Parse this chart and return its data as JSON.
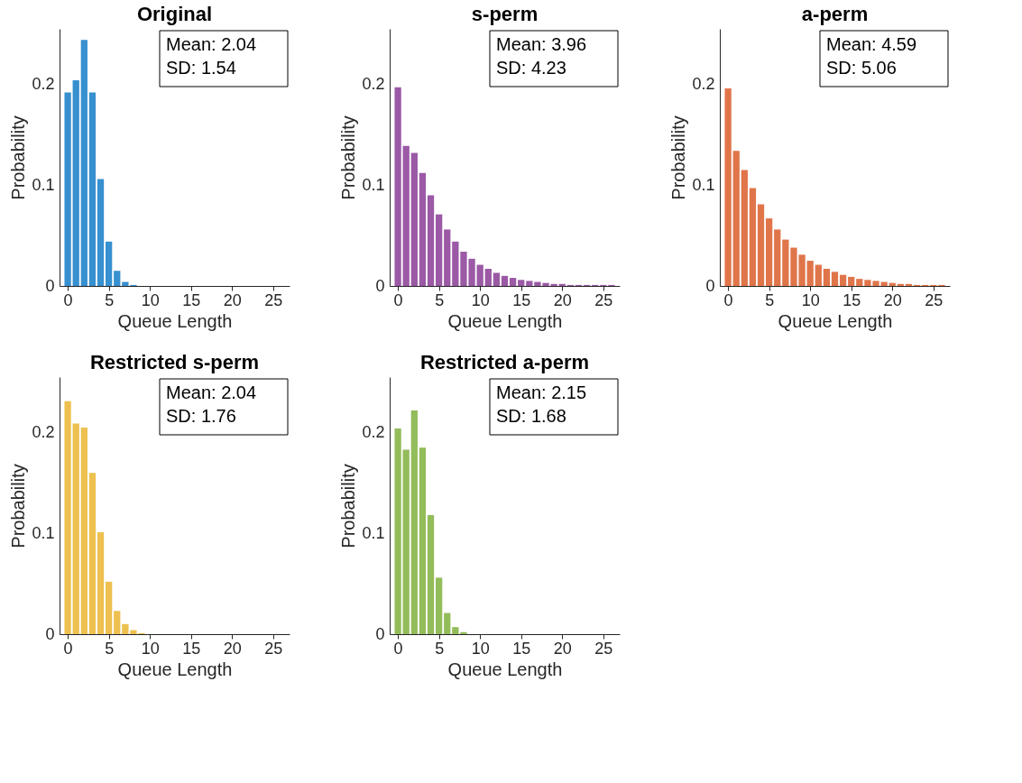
{
  "chart_data": [
    {
      "type": "bar",
      "title": "Original",
      "xlabel": "Queue Length",
      "ylabel": "Probability",
      "color": "#3790cf",
      "x": [
        0,
        1,
        2,
        3,
        4,
        5,
        6,
        7,
        8
      ],
      "values": [
        0.192,
        0.204,
        0.244,
        0.192,
        0.106,
        0.044,
        0.015,
        0.004,
        0.001
      ],
      "xlim": [
        -1,
        27
      ],
      "xticks": [
        0,
        5,
        10,
        15,
        20,
        25
      ],
      "ylim": [
        0,
        0.255
      ],
      "yticks": [
        0,
        0.1,
        0.2
      ],
      "annotations": [
        "Mean: 2.04",
        "SD: 1.54"
      ]
    },
    {
      "type": "bar",
      "title": "s-perm",
      "xlabel": "Queue Length",
      "ylabel": "Probability",
      "color": "#9b59a6",
      "x": [
        0,
        1,
        2,
        3,
        4,
        5,
        6,
        7,
        8,
        9,
        10,
        11,
        12,
        13,
        14,
        15,
        16,
        17,
        18,
        19,
        20,
        21,
        22,
        23,
        24,
        25,
        26
      ],
      "values": [
        0.197,
        0.139,
        0.132,
        0.112,
        0.09,
        0.071,
        0.056,
        0.044,
        0.034,
        0.027,
        0.021,
        0.017,
        0.013,
        0.01,
        0.008,
        0.006,
        0.005,
        0.004,
        0.003,
        0.002,
        0.002,
        0.001,
        0.001,
        0.001,
        0.001,
        0.001,
        0.001
      ],
      "xlim": [
        -1,
        27
      ],
      "xticks": [
        0,
        5,
        10,
        15,
        20,
        25
      ],
      "ylim": [
        0,
        0.255
      ],
      "yticks": [
        0,
        0.1,
        0.2
      ],
      "annotations": [
        "Mean: 3.96",
        "SD: 4.23"
      ]
    },
    {
      "type": "bar",
      "title": "a-perm",
      "xlabel": "Queue Length",
      "ylabel": "Probability",
      "color": "#e0754a",
      "x": [
        0,
        1,
        2,
        3,
        4,
        5,
        6,
        7,
        8,
        9,
        10,
        11,
        12,
        13,
        14,
        15,
        16,
        17,
        18,
        19,
        20,
        21,
        22,
        23,
        24,
        25,
        26
      ],
      "values": [
        0.196,
        0.134,
        0.115,
        0.097,
        0.081,
        0.067,
        0.056,
        0.046,
        0.038,
        0.031,
        0.025,
        0.021,
        0.017,
        0.014,
        0.011,
        0.009,
        0.007,
        0.006,
        0.005,
        0.004,
        0.003,
        0.002,
        0.002,
        0.001,
        0.001,
        0.001,
        0.001
      ],
      "xlim": [
        -1,
        27
      ],
      "xticks": [
        0,
        5,
        10,
        15,
        20,
        25
      ],
      "ylim": [
        0,
        0.255
      ],
      "yticks": [
        0,
        0.1,
        0.2
      ],
      "annotations": [
        "Mean: 4.59",
        "SD: 5.06"
      ]
    },
    {
      "type": "bar",
      "title": "Restricted s-perm",
      "xlabel": "Queue Length",
      "ylabel": "Probability",
      "color": "#edc04f",
      "x": [
        0,
        1,
        2,
        3,
        4,
        5,
        6,
        7,
        8,
        9
      ],
      "values": [
        0.231,
        0.209,
        0.205,
        0.16,
        0.101,
        0.052,
        0.023,
        0.01,
        0.004,
        0.001
      ],
      "xlim": [
        -1,
        27
      ],
      "xticks": [
        0,
        5,
        10,
        15,
        20,
        25
      ],
      "ylim": [
        0,
        0.255
      ],
      "yticks": [
        0,
        0.1,
        0.2
      ],
      "annotations": [
        "Mean: 2.04",
        "SD: 1.76"
      ]
    },
    {
      "type": "bar",
      "title": "Restricted a-perm",
      "xlabel": "Queue Length",
      "ylabel": "Probability",
      "color": "#93bc5a",
      "x": [
        0,
        1,
        2,
        3,
        4,
        5,
        6,
        7,
        8
      ],
      "values": [
        0.204,
        0.183,
        0.222,
        0.185,
        0.118,
        0.056,
        0.021,
        0.007,
        0.002
      ],
      "xlim": [
        -1,
        27
      ],
      "xticks": [
        0,
        5,
        10,
        15,
        20,
        25
      ],
      "ylim": [
        0,
        0.255
      ],
      "yticks": [
        0,
        0.1,
        0.2
      ],
      "annotations": [
        "Mean: 2.15",
        "SD: 1.68"
      ]
    }
  ]
}
